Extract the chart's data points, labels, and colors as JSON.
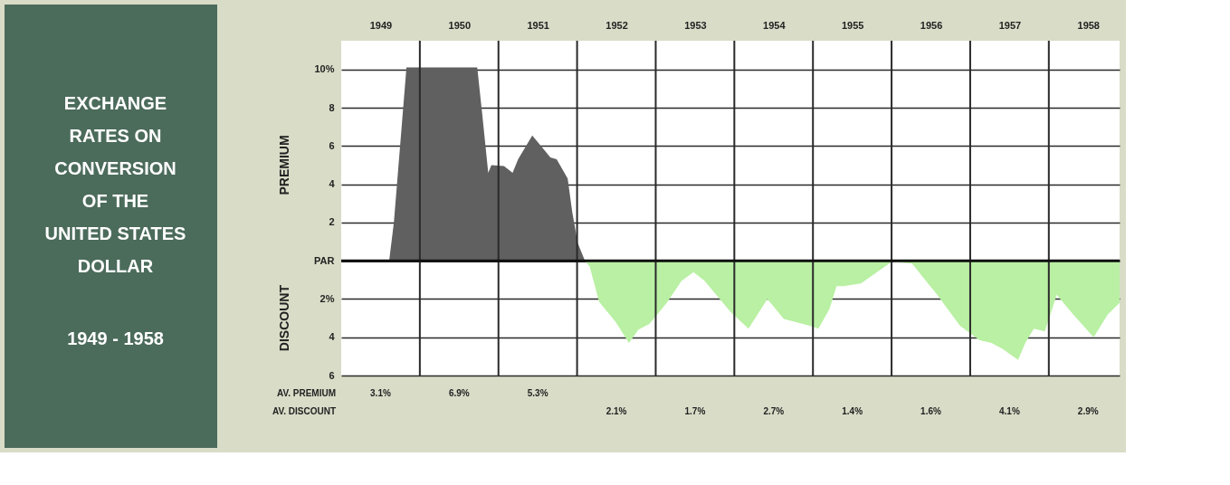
{
  "chart_data": {
    "type": "area",
    "title": "EXCHANGE\nRATES ON\nCONVERSION\nOF THE\nUNITED STATES\nDOLLAR",
    "subtitle": "1949 - 1958",
    "ylabel": "PREMIUM",
    "xlim": [
      1949,
      1958.9
    ],
    "xticks": [
      {
        "value": 1949.5,
        "label": "1949"
      },
      {
        "value": 1950,
        "label": null
      },
      {
        "value": 1950.5,
        "label": "1950"
      },
      {
        "value": 1951,
        "label": null
      },
      {
        "value": 1951.5,
        "label": "1951"
      },
      {
        "value": 1952,
        "label": null
      },
      {
        "value": 1952.5,
        "label": "1952"
      },
      {
        "value": 1953,
        "label": null
      },
      {
        "value": 1953.5,
        "label": "1953"
      },
      {
        "value": 1954,
        "label": null
      },
      {
        "value": 1954.5,
        "label": "1954"
      },
      {
        "value": 1955,
        "label": null
      },
      {
        "value": 1955.5,
        "label": "1955"
      },
      {
        "value": 1956,
        "label": null
      },
      {
        "value": 1956.5,
        "label": "1956"
      },
      {
        "value": 1957,
        "label": null
      },
      {
        "value": 1957.5,
        "label": "1957"
      },
      {
        "value": 1958,
        "label": null
      },
      {
        "value": 1958.5,
        "label": "1958"
      }
    ],
    "ylim": [
      -6,
      11.5
    ],
    "yticks": [
      {
        "value": 10,
        "label": "10%"
      },
      8,
      6,
      4,
      2,
      {
        "value": 0,
        "label": "PAR"
      },
      {
        "value": -2,
        "label": "2%"
      },
      {
        "value": -4,
        "label": "4"
      },
      {
        "value": -6,
        "label": "6"
      }
    ],
    "grid": true,
    "series": [
      {
        "color": "#606060",
        "x": [
          1949.0,
          1949.61,
          1949.67,
          1949.83,
          1950.73,
          1950.79,
          1950.87,
          1950.91,
          1951.07,
          1951.18,
          1951.25,
          1951.43,
          1951.59,
          1951.66,
          1951.74,
          1951.88,
          1951.94,
          1952.01,
          1952.1
        ],
        "values": [
          0,
          0,
          2.0,
          10.1,
          10.1,
          7.8,
          4.6,
          5.0,
          4.95,
          4.6,
          5.3,
          6.55,
          5.75,
          5.4,
          5.3,
          4.3,
          2.5,
          0.9,
          0
        ]
      },
      {
        "color": "#b9f0a3",
        "x": [
          1952.1,
          1952.16,
          1952.28,
          1952.49,
          1952.66,
          1952.78,
          1952.92,
          1953.14,
          1953.33,
          1953.48,
          1953.62,
          1953.95,
          1954.18,
          1954.42,
          1954.63,
          1954.96,
          1955.07,
          1955.21,
          1955.3,
          1955.39,
          1955.61,
          1955.97,
          1956.0,
          1956.26,
          1956.58,
          1956.87,
          1957.12,
          1957.27,
          1957.41,
          1957.61,
          1957.7,
          1957.81,
          1957.95,
          1958.1,
          1958.31,
          1958.57,
          1958.75,
          1958.9
        ],
        "values": [
          0,
          -0.3,
          -2.15,
          -3.2,
          -4.3,
          -3.6,
          -3.3,
          -2.2,
          -1.04,
          -0.6,
          -1.04,
          -2.67,
          -3.55,
          -2.0,
          -3.04,
          -3.4,
          -3.55,
          -2.52,
          -1.33,
          -1.33,
          -1.19,
          -0.15,
          -0.07,
          -0.15,
          -1.78,
          -3.4,
          -4.15,
          -4.3,
          -4.6,
          -5.19,
          -4.3,
          -3.55,
          -3.7,
          -1.78,
          -2.81,
          -4.0,
          -2.81,
          -2.2
        ]
      }
    ],
    "annotations": [
      "DISCOUNT",
      "AV. PREMIUM",
      "AV. DISCOUNT",
      "3.1%",
      "6.9%",
      "5.3%",
      "2.1%",
      "1.7%",
      "2.7%",
      "1.4%",
      "1.6%",
      "4.1%",
      "2.9%"
    ]
  }
}
